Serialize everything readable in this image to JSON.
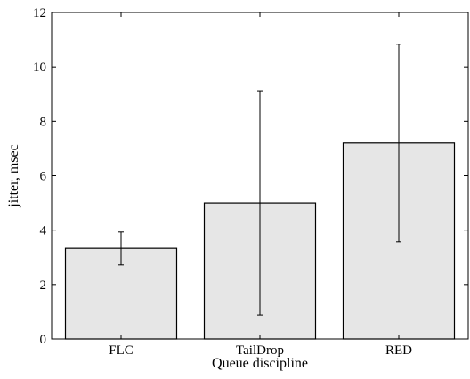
{
  "chart_data": {
    "type": "bar",
    "categories": [
      "FLC",
      "TailDrop",
      "RED"
    ],
    "values": [
      3.33,
      5.0,
      7.2
    ],
    "error_bars": [
      {
        "low": 2.72,
        "high": 3.93
      },
      {
        "low": 0.88,
        "high": 9.12
      },
      {
        "low": 3.57,
        "high": 10.83
      }
    ],
    "title": "",
    "xlabel": "Queue discipline",
    "ylabel": "jitter, msec",
    "ylim": [
      0,
      12
    ],
    "yticks": [
      0,
      2,
      4,
      6,
      8,
      10,
      12
    ],
    "grid": false,
    "legend": "none",
    "bar_color": "#e6e6e6",
    "edge_color": "#000000"
  }
}
